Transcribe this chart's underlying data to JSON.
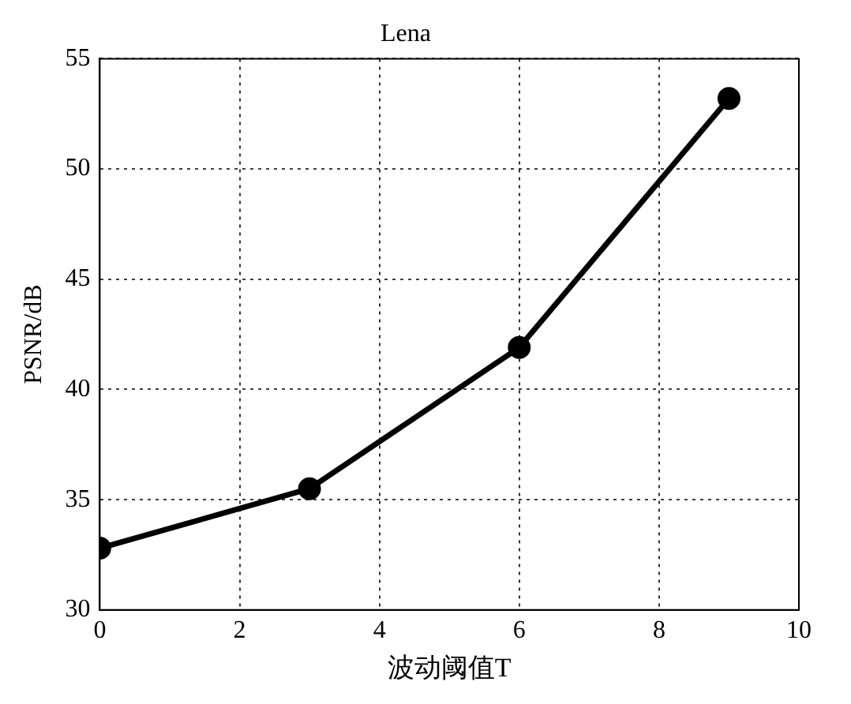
{
  "chart_data": {
    "type": "line",
    "title": "Lena",
    "xlabel": "波动阈值T",
    "ylabel": "PSNR/dB",
    "x": [
      0,
      3,
      6,
      9
    ],
    "series": [
      {
        "color": "#000000",
        "values": [
          32.8,
          35.5,
          41.9,
          53.2
        ]
      }
    ],
    "xlim": [
      0,
      10
    ],
    "xticks": [
      0,
      2,
      4,
      6,
      8,
      10
    ],
    "ylim": [
      30,
      55
    ],
    "yticks": [
      30,
      35,
      40,
      45,
      50,
      55
    ],
    "grid": true,
    "legend": false,
    "marker": "circle",
    "line_style": "solid"
  }
}
